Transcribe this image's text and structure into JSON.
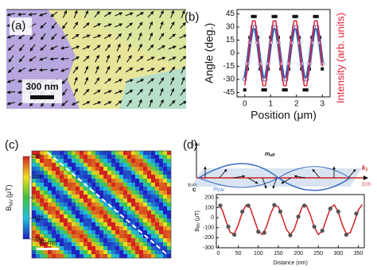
{
  "panel_a": {
    "label": "(a)",
    "scale_bar": "300 nm"
  },
  "panel_b": {
    "label": "(b)"
  },
  "panel_c": {
    "label": "(c)",
    "colorbar_label": [
      "B",
      "NV",
      "(μT)"
    ],
    "colorbar_ticks": [
      200,
      100,
      0,
      -100,
      -200
    ],
    "scale_bar": "40 nm"
  },
  "panel_d": {
    "label": "(d)",
    "diagram": {
      "z_axis": [
        "z",
        "[111]"
      ],
      "y_axis": [
        "y",
        "[11̅2]"
      ],
      "m_eff": [
        "m",
        "eff"
      ],
      "m_dm": [
        "m",
        "DM"
      ],
      "k1": [
        "k",
        "1"
      ],
      "direction": "[110]"
    }
  },
  "chart_data": [
    {
      "type": "line",
      "xlabel": "Position (μm)",
      "ylabel": "Angle (deg.)",
      "y2label": "Intensity (arb. units)",
      "xlim": [
        -0.3,
        3.3
      ],
      "ylim": [
        -50,
        50
      ],
      "xticks": [
        0,
        1,
        2,
        3
      ],
      "yticks": [
        45,
        30,
        15,
        0,
        -15,
        -30,
        -45
      ],
      "x": [
        0,
        0.1,
        0.2,
        0.3,
        0.4,
        0.5,
        0.6,
        0.7,
        0.8,
        0.9,
        1.0,
        1.1,
        1.2,
        1.3,
        1.4,
        1.5,
        1.6,
        1.7,
        1.8,
        1.9,
        2.0,
        2.1,
        2.2,
        2.3,
        2.4,
        2.5,
        2.6,
        2.7,
        2.8,
        2.9,
        3.0
      ],
      "series": [
        {
          "color": "#111111",
          "marker": "square",
          "line": false,
          "values": [
            -42,
            -18,
            18,
            42,
            42,
            18,
            -18,
            -42,
            -42,
            -18,
            18,
            42,
            42,
            18,
            -18,
            -42,
            -42,
            -18,
            18,
            42,
            42,
            18,
            -18,
            -42,
            -42,
            -18,
            18,
            42,
            42,
            18,
            -18
          ]
        },
        {
          "color": "#3a5fb0",
          "marker": "circle",
          "line": true,
          "values": [
            -30,
            -12,
            12,
            30,
            30,
            12,
            -12,
            -30,
            -30,
            -12,
            12,
            30,
            30,
            12,
            -12,
            -30,
            -30,
            -12,
            12,
            30,
            30,
            12,
            -12,
            -30,
            -30,
            -12,
            12,
            30,
            30,
            12,
            -12
          ]
        },
        {
          "color": "#e0203a",
          "marker": "none",
          "line": true,
          "values": [
            -37,
            -15,
            15,
            37,
            37,
            15,
            -15,
            -37,
            -37,
            -15,
            15,
            37,
            37,
            15,
            -15,
            -37,
            -37,
            -15,
            15,
            37,
            37,
            15,
            -15,
            -37,
            -37,
            -15,
            15,
            37,
            37,
            15,
            -15
          ]
        }
      ]
    },
    {
      "type": "line",
      "panel_label": "c",
      "xlabel": "Distance (nm)",
      "ylabel": [
        "B",
        "NV",
        "(μT)"
      ],
      "xlim": [
        -5,
        365
      ],
      "ylim": [
        -300,
        230
      ],
      "xticks": [
        0,
        50,
        100,
        150,
        200,
        250,
        300,
        350
      ],
      "yticks": [
        200,
        100,
        0,
        -100,
        -200,
        -300
      ],
      "x": [
        0,
        10,
        20,
        30,
        40,
        50,
        60,
        70,
        80,
        90,
        100,
        110,
        120,
        130,
        140,
        150,
        160,
        170,
        180,
        190,
        200,
        210,
        220,
        230,
        240,
        250,
        260,
        270,
        280,
        290,
        300,
        310,
        320,
        330,
        340,
        350,
        360
      ],
      "series": [
        {
          "color": "#d42020",
          "marker": "none",
          "line": true,
          "values": [
            130,
            76,
            -46,
            -150,
            -161,
            -71,
            55,
            128,
            95,
            -20,
            -135,
            -168,
            -95,
            31,
            121,
            110,
            6,
            -116,
            -170,
            -116,
            6,
            110,
            121,
            31,
            -95,
            -168,
            -135,
            -20,
            95,
            128,
            55,
            -71,
            -161,
            -150,
            -46,
            76,
            130
          ]
        },
        {
          "color": "#555555",
          "marker": "circle",
          "line": false,
          "x": [
            5,
            25,
            40,
            60,
            75,
            100,
            115,
            140,
            155,
            180,
            200,
            215,
            240,
            260,
            280,
            300,
            320,
            345
          ],
          "values": [
            120,
            -90,
            -170,
            60,
            120,
            -140,
            -150,
            125,
            60,
            -175,
            10,
            120,
            -90,
            -130,
            90,
            60,
            -170,
            40
          ]
        }
      ]
    }
  ]
}
